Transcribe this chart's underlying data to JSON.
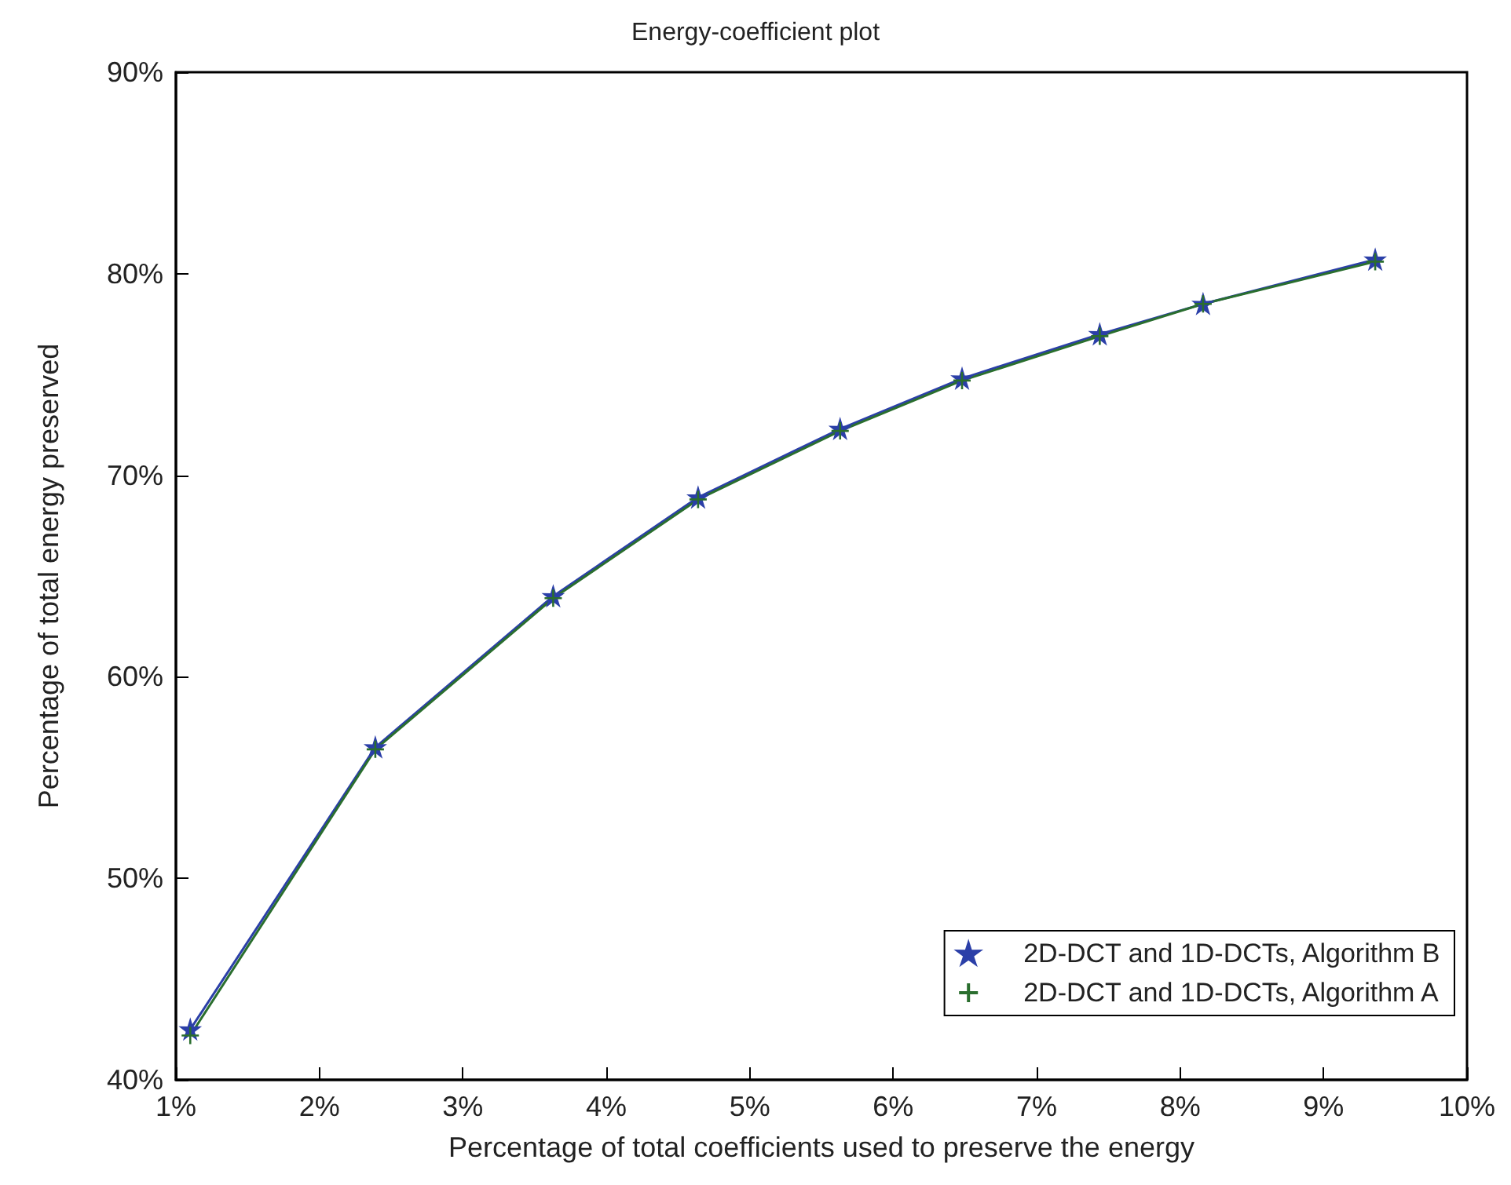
{
  "chart_data": {
    "type": "line",
    "title": "Energy-coefficient plot",
    "xlabel": "Percentage of total coefficients used to preserve the energy",
    "ylabel": "Percentage of total energy preserved",
    "x": [
      1.1,
      2.39,
      3.63,
      4.64,
      5.63,
      6.48,
      7.44,
      8.16,
      9.36
    ],
    "series": [
      {
        "name": "2D-DCT and 1D-DCTs, Algorithm B",
        "color": "#2b3fa8",
        "marker": "star",
        "values": [
          42.5,
          56.5,
          64.0,
          68.9,
          72.3,
          74.8,
          77.0,
          78.5,
          80.7
        ]
      },
      {
        "name": "2D-DCT and 1D-DCTs, Algorithm A",
        "color": "#2a6e2e",
        "marker": "cross",
        "values": [
          42.2,
          56.4,
          63.9,
          68.8,
          72.2,
          74.7,
          76.9,
          78.5,
          80.6
        ]
      }
    ],
    "xlim": [
      1,
      10
    ],
    "xticks": [
      {
        "value": 1,
        "label": "1%"
      },
      {
        "value": 2,
        "label": "2%"
      },
      {
        "value": 3,
        "label": "3%"
      },
      {
        "value": 4,
        "label": "4%"
      },
      {
        "value": 5,
        "label": "5%"
      },
      {
        "value": 6,
        "label": "6%"
      },
      {
        "value": 7,
        "label": "7%"
      },
      {
        "value": 8,
        "label": "8%"
      },
      {
        "value": 9,
        "label": "9%"
      },
      {
        "value": 10,
        "label": "10%"
      }
    ],
    "ylim": [
      40,
      90
    ],
    "yticks": [
      {
        "value": 40,
        "label": "40%"
      },
      {
        "value": 50,
        "label": "50%"
      },
      {
        "value": 60,
        "label": "60%"
      },
      {
        "value": 70,
        "label": "70%"
      },
      {
        "value": 80,
        "label": "80%"
      },
      {
        "value": 90,
        "label": "90%"
      }
    ],
    "grid": false,
    "legend": "bottom right",
    "line_style": "solid"
  }
}
